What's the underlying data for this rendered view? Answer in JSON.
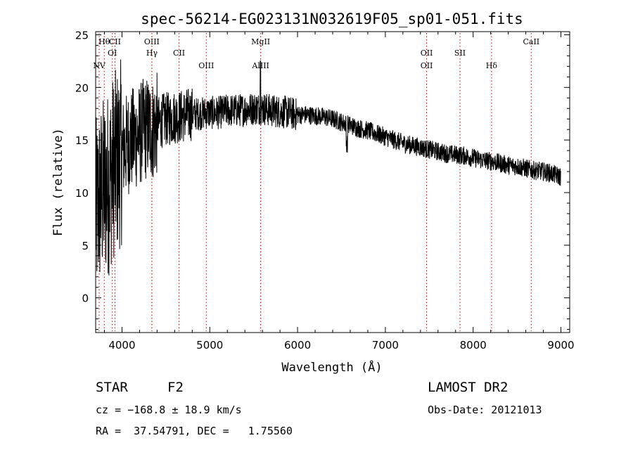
{
  "chart_data": {
    "type": "line",
    "title": "spec-56214-EG023131N032619F05_sp01-051.fits",
    "xlabel": "Wavelength (Å)",
    "ylabel": "Flux (relative)",
    "xlim": [
      3700,
      9100
    ],
    "ylim": [
      -3.3,
      25.3
    ],
    "x_ticks": [
      "4000",
      "5000",
      "6000",
      "7000",
      "8000",
      "9000"
    ],
    "y_ticks": [
      "0",
      "5",
      "10",
      "15",
      "20",
      "25"
    ],
    "grid": false,
    "series": [
      {
        "x": [
          3700,
          3750,
          3800,
          3850,
          3900,
          3950,
          4000,
          4050,
          4100,
          4150,
          4200,
          4250,
          4300,
          4350,
          4400,
          4450,
          4500,
          4550,
          4600,
          4650,
          4700,
          4750,
          4800,
          4850,
          4900,
          4950,
          5000,
          5100,
          5200,
          5300,
          5400,
          5500,
          5600,
          5700,
          5800,
          5900,
          6000,
          6100,
          6200,
          6300,
          6400,
          6500,
          6600,
          6700,
          6800,
          6900,
          7000,
          7100,
          7200,
          7300,
          7400,
          7500,
          7600,
          7700,
          7800,
          7900,
          8000,
          8100,
          8200,
          8300,
          8400,
          8500,
          8600,
          8700,
          8800,
          8900,
          9000
        ],
        "y": [
          8.0,
          9.5,
          10.5,
          11.0,
          12.5,
          13.0,
          14.0,
          14.5,
          15.0,
          15.2,
          15.5,
          16.0,
          16.2,
          16.0,
          16.5,
          16.8,
          17.0,
          17.0,
          17.2,
          17.2,
          17.3,
          17.4,
          17.5,
          17.5,
          17.5,
          17.6,
          17.6,
          17.6,
          17.8,
          17.8,
          17.9,
          18.0,
          18.0,
          17.8,
          17.7,
          17.6,
          17.4,
          17.4,
          17.3,
          17.2,
          17.0,
          16.7,
          16.4,
          16.1,
          15.9,
          15.6,
          15.3,
          15.0,
          14.7,
          14.5,
          14.3,
          14.1,
          13.9,
          13.7,
          13.6,
          13.5,
          13.3,
          13.1,
          13.0,
          12.8,
          12.6,
          12.5,
          12.3,
          12.1,
          12.0,
          11.8,
          11.5
        ]
      }
    ],
    "spectral_lines": [
      {
        "label": "Hθ",
        "x": 3798,
        "row": 1
      },
      {
        "label": "CII",
        "x": 3920,
        "row": 1
      },
      {
        "label": "OI",
        "x": 3890,
        "row": 2
      },
      {
        "label": "NV",
        "x": 3740,
        "row": 3
      },
      {
        "label": "OIII",
        "x": 4340,
        "row": 1
      },
      {
        "label": "Hγ",
        "x": 4341,
        "row": 2
      },
      {
        "label": "CII",
        "x": 4650,
        "row": 2
      },
      {
        "label": "OIII",
        "x": 4960,
        "row": 3
      },
      {
        "label": "MgII",
        "x": 5580,
        "row": 1
      },
      {
        "label": "AlIII",
        "x": 5580,
        "row": 3
      },
      {
        "label": "OII",
        "x": 7470,
        "row": 2
      },
      {
        "label": "OII",
        "x": 7470,
        "row": 3
      },
      {
        "label": "SII",
        "x": 7850,
        "row": 2
      },
      {
        "label": "Hδ",
        "x": 8210,
        "row": 3
      },
      {
        "label": "CaII",
        "x": 8662,
        "row": 1
      }
    ],
    "line_color": "#000000",
    "marker_color": "#cc0000"
  },
  "info": {
    "object_type": "STAR",
    "subclass": "F2",
    "survey": "LAMOST DR2",
    "redshift": "cz = −168.8 ± 18.9 km/s",
    "obs_date": "Obs-Date: 20121013",
    "coords": "RA =  37.54791, DEC =   1.75560"
  }
}
